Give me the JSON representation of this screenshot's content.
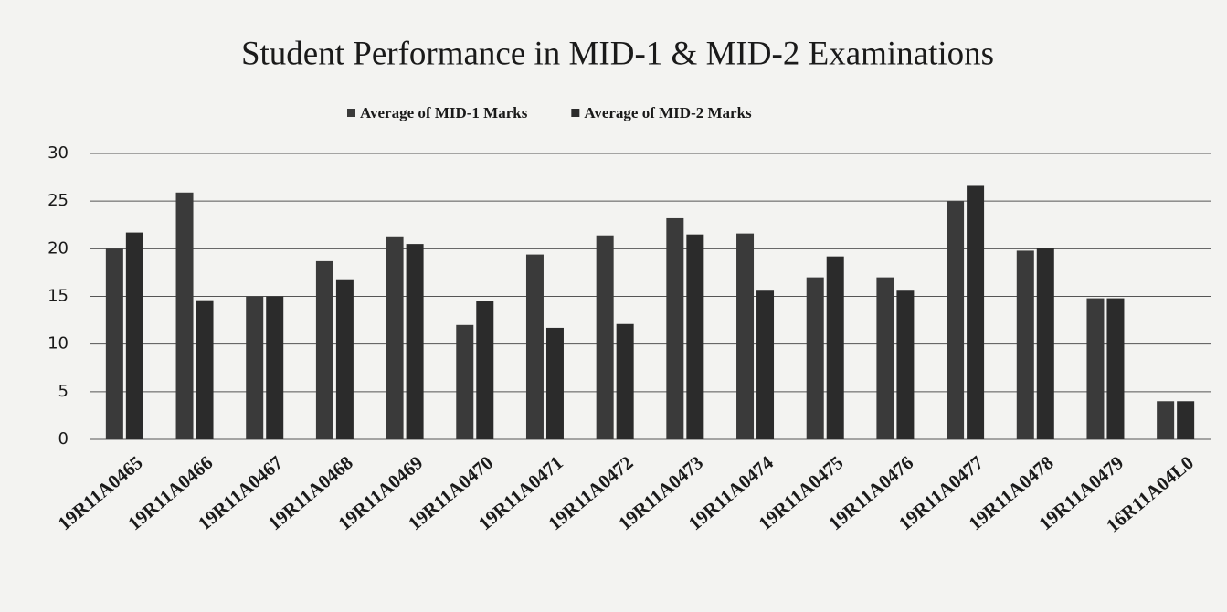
{
  "chart_data": {
    "type": "bar",
    "title": "Student Performance in MID-1 & MID-2 Examinations",
    "categories": [
      "19R11A0465",
      "19R11A0466",
      "19R11A0467",
      "19R11A0468",
      "19R11A0469",
      "19R11A0470",
      "19R11A0471",
      "19R11A0472",
      "19R11A0473",
      "19R11A0474",
      "19R11A0475",
      "19R11A0476",
      "19R11A0477",
      "19R11A0478",
      "19R11A0479",
      "16R11A04L0"
    ],
    "series": [
      {
        "name": "Average of MID-1 Marks",
        "color": "#3a3a3a",
        "values": [
          20,
          25.9,
          15,
          18.7,
          21.3,
          12,
          19.4,
          21.4,
          23.2,
          21.6,
          17,
          17,
          25,
          19.8,
          14.8,
          4
        ]
      },
      {
        "name": "Average of MID-2 Marks",
        "color": "#2b2b2b",
        "values": [
          21.7,
          14.6,
          15,
          16.8,
          20.5,
          14.5,
          11.7,
          12.1,
          21.5,
          15.6,
          19.2,
          15.6,
          26.6,
          20.1,
          14.8,
          4
        ]
      }
    ],
    "ylim": [
      0,
      30
    ],
    "yticks": [
      0,
      5,
      10,
      15,
      20,
      25,
      30
    ],
    "grid": true,
    "legend": "top"
  }
}
